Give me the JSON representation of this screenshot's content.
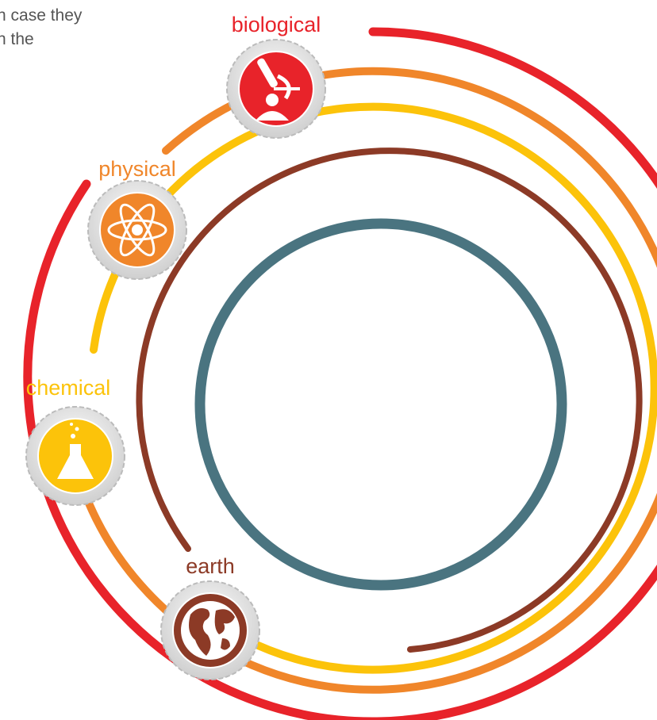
{
  "paragraph": {
    "lines": [
      "n case they",
      "n the"
    ]
  },
  "nodes": [
    {
      "label": "biological"
    },
    {
      "label": "physical"
    },
    {
      "label": "chemical"
    },
    {
      "label": "earth"
    }
  ]
}
